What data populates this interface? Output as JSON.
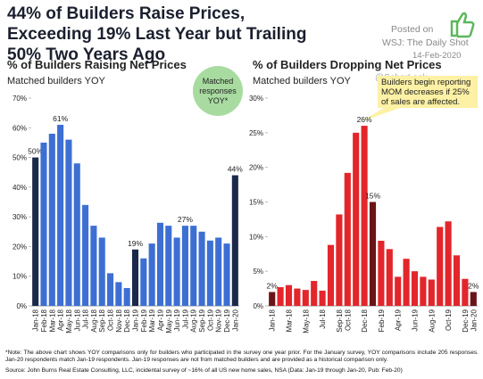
{
  "header": {
    "title": "44% of Builders Raise Prices, Exceeding 19% Last Year but Trailing 50% Two Years Ago",
    "posted": "Posted on",
    "source_name": "WSJ: The Daily Shot",
    "date": "14-Feb-2020",
    "watermark": "@SoberLook"
  },
  "chart_data": [
    {
      "type": "bar",
      "title": "% of Builders Raising Net Prices",
      "subtitle": "Matched builders YOY",
      "annotation": "Matched responses YOY*",
      "categories": [
        "Jan-18",
        "Feb-18",
        "Mar-18",
        "Apr-18",
        "May-18",
        "Jun-18",
        "Jul-18",
        "Aug-18",
        "Sep-18",
        "Oct-18",
        "Nov-18",
        "Dec-18",
        "Jan-19",
        "Feb-19",
        "Mar-19",
        "Apr-19",
        "May-19",
        "Jun-19",
        "Jul-19",
        "Aug-19",
        "Sep-19",
        "Oct-19",
        "Nov-19",
        "Dec-19",
        "Jan-20"
      ],
      "values": [
        50,
        55,
        58,
        61,
        56,
        48,
        34,
        27,
        23,
        11,
        8,
        6,
        19,
        16,
        21,
        28,
        27,
        23,
        27,
        27,
        25,
        22,
        23,
        21,
        44
      ],
      "value_labels": [
        "50%",
        null,
        null,
        "61%",
        null,
        null,
        null,
        null,
        null,
        null,
        null,
        null,
        "19%",
        null,
        null,
        null,
        null,
        null,
        "27%",
        null,
        null,
        null,
        null,
        null,
        "44%"
      ],
      "colors": [
        "#1b2a4a",
        "#3d6fd3",
        "#3d6fd3",
        "#3d6fd3",
        "#3d6fd3",
        "#3d6fd3",
        "#3d6fd3",
        "#3d6fd3",
        "#3d6fd3",
        "#3d6fd3",
        "#3d6fd3",
        "#3d6fd3",
        "#1b2a4a",
        "#3d6fd3",
        "#3d6fd3",
        "#3d6fd3",
        "#3d6fd3",
        "#3d6fd3",
        "#3d6fd3",
        "#3d6fd3",
        "#3d6fd3",
        "#3d6fd3",
        "#3d6fd3",
        "#3d6fd3",
        "#1b2a4a"
      ],
      "ylim": [
        0,
        70
      ],
      "yticks": [
        {
          "value": 0,
          "label": "0%"
        },
        {
          "value": 10,
          "label": "10%"
        },
        {
          "value": 20,
          "label": "20%"
        },
        {
          "value": 30,
          "label": "30%"
        },
        {
          "value": 40,
          "label": "40%"
        },
        {
          "value": 50,
          "label": "50%"
        },
        {
          "value": 60,
          "label": "60%"
        },
        {
          "value": 70,
          "label": "70%"
        }
      ],
      "grid": false
    },
    {
      "type": "bar",
      "title": "% of Builders Dropping Net Prices",
      "subtitle": "Matched builders YOY",
      "annotation": "Builders begin reporting MOM decreases if 25% of sales are affected.",
      "categories": [
        "Jan-18",
        null,
        "Mar-18",
        null,
        "May-18",
        null,
        "Jul-18",
        null,
        "Sep-18",
        "Oct-18",
        null,
        "Dec-18",
        null,
        "Feb-19",
        null,
        "Apr-19",
        null,
        "Jun-19",
        null,
        "Aug-19",
        null,
        "Oct-19",
        null,
        "Dec-19",
        "Jan-20"
      ],
      "values": [
        2,
        2.7,
        3,
        2.5,
        2.3,
        3.6,
        2.2,
        8.8,
        13.2,
        19.2,
        25,
        26,
        15,
        9.4,
        8.2,
        4.2,
        6.8,
        5,
        4.2,
        3.8,
        11.4,
        12.2,
        7.3,
        3.9,
        2
      ],
      "value_labels": [
        "2%",
        null,
        null,
        null,
        null,
        null,
        null,
        null,
        null,
        null,
        null,
        "26%",
        "15%",
        null,
        null,
        null,
        null,
        null,
        null,
        null,
        null,
        null,
        null,
        null,
        "2%"
      ],
      "colors": [
        "#6b1416",
        "#e2262b",
        "#e2262b",
        "#e2262b",
        "#e2262b",
        "#e2262b",
        "#e2262b",
        "#e2262b",
        "#e2262b",
        "#e2262b",
        "#e2262b",
        "#e2262b",
        "#6b1416",
        "#e2262b",
        "#e2262b",
        "#e2262b",
        "#e2262b",
        "#e2262b",
        "#e2262b",
        "#e2262b",
        "#e2262b",
        "#e2262b",
        "#e2262b",
        "#e2262b",
        "#6b1416"
      ],
      "ylim": [
        0,
        30
      ],
      "yticks": [
        {
          "value": 0,
          "label": "0%"
        },
        {
          "value": 5,
          "label": "5%"
        },
        {
          "value": 10,
          "label": "10%"
        },
        {
          "value": 15,
          "label": "15%"
        },
        {
          "value": 20,
          "label": "20%"
        },
        {
          "value": 25,
          "label": "25%"
        },
        {
          "value": 30,
          "label": "30%"
        }
      ],
      "grid": false
    }
  ],
  "footer": {
    "note": "*Note: The above chart shows YOY comparisons only for builders who participated in the survey one year prior. For the January survey, YOY comparisons include 205 responses. Jan-20 respondents match Jan-19 respondents. Jan-19 responses are not from matched builders and are provided as a historical comparison only.",
    "source": "Source: John Burns Real Estate Consulting, LLC, incidental survey of ~16% of all US new home sales, NSA (Data: Jan-19 through Jan-20, Pub: Feb-20)"
  }
}
